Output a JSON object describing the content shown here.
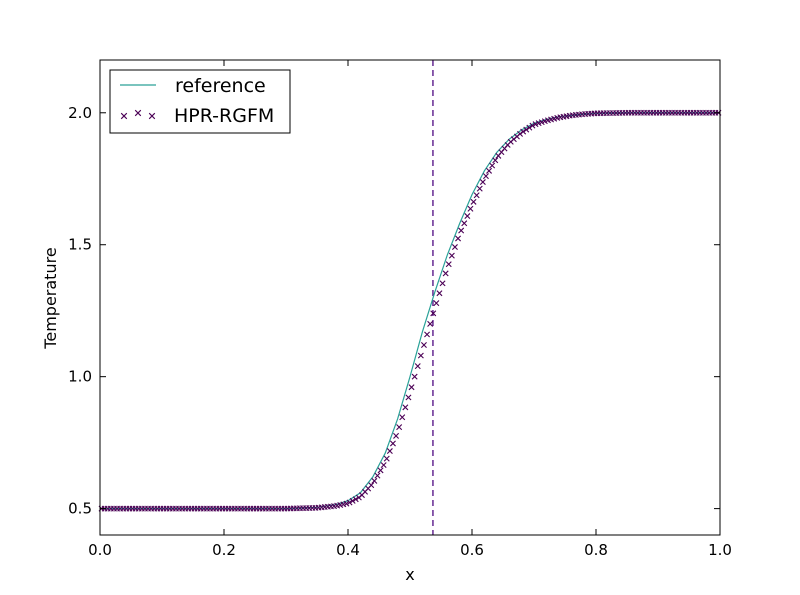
{
  "chart_data": {
    "type": "line",
    "xlabel": "x",
    "ylabel": "Temperature",
    "xlim": [
      0.0,
      1.0
    ],
    "ylim": [
      0.4,
      2.2
    ],
    "x_ticks": [
      "0.0",
      "0.2",
      "0.4",
      "0.6",
      "0.8",
      "1.0"
    ],
    "y_ticks": [
      "0.5",
      "1.0",
      "1.5",
      "2.0"
    ],
    "interface_x": 0.537,
    "legend_position": "upper-left",
    "grid": false,
    "series": [
      {
        "name": "reference",
        "style": "line",
        "color": "#2aa198",
        "x": [
          0.0,
          0.3,
          0.35,
          0.38,
          0.4,
          0.42,
          0.44,
          0.46,
          0.48,
          0.5,
          0.52,
          0.54,
          0.56,
          0.58,
          0.6,
          0.62,
          0.64,
          0.66,
          0.68,
          0.7,
          0.72,
          0.74,
          0.76,
          0.78,
          0.8,
          0.85,
          0.9,
          1.0
        ],
        "y": [
          0.5,
          0.5,
          0.505,
          0.515,
          0.53,
          0.56,
          0.62,
          0.71,
          0.84,
          1.0,
          1.17,
          1.32,
          1.46,
          1.58,
          1.69,
          1.78,
          1.85,
          1.9,
          1.935,
          1.96,
          1.975,
          1.985,
          1.99,
          1.995,
          1.998,
          2.0,
          2.0,
          2.0
        ]
      },
      {
        "name": "HPR-RGFM",
        "style": "markers",
        "marker": "x",
        "color": "#4b0055",
        "x": [
          0.0,
          0.3,
          0.35,
          0.38,
          0.4,
          0.42,
          0.44,
          0.46,
          0.48,
          0.5,
          0.52,
          0.54,
          0.56,
          0.58,
          0.6,
          0.62,
          0.64,
          0.66,
          0.68,
          0.7,
          0.72,
          0.74,
          0.76,
          0.78,
          0.8,
          0.85,
          0.9,
          1.0
        ],
        "y": [
          0.5,
          0.5,
          0.503,
          0.51,
          0.52,
          0.545,
          0.595,
          0.675,
          0.79,
          0.94,
          1.1,
          1.26,
          1.41,
          1.54,
          1.65,
          1.75,
          1.83,
          1.885,
          1.925,
          1.955,
          1.97,
          1.982,
          1.99,
          1.995,
          1.998,
          2.0,
          2.0,
          2.0
        ]
      }
    ]
  },
  "colors": {
    "interface_line": "#5a1a8a"
  }
}
